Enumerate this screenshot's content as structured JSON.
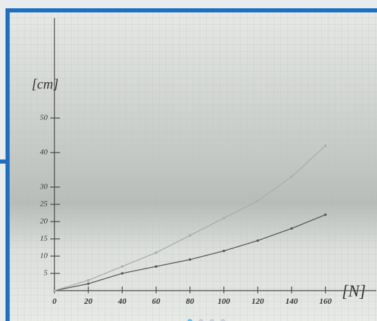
{
  "chart_data": {
    "type": "line",
    "x_label": "[N]",
    "y_label": "[cm]",
    "x": [
      0,
      20,
      40,
      60,
      80,
      100,
      120,
      140,
      160
    ],
    "series": [
      {
        "color": "#555555",
        "values": [
          0,
          2,
          5,
          7,
          9,
          11.5,
          14.5,
          18,
          22
        ]
      },
      {
        "color": "#a9aea9",
        "values": [
          0,
          3,
          7,
          11,
          16,
          21,
          26,
          33,
          42
        ]
      }
    ],
    "xlim": [
      0,
      190
    ],
    "ylim": [
      0,
      79
    ],
    "xticks": [
      0,
      20,
      40,
      60,
      80,
      100,
      120,
      140,
      160
    ],
    "yticks": [
      5,
      10,
      15,
      20,
      25,
      30,
      40,
      50
    ]
  }
}
